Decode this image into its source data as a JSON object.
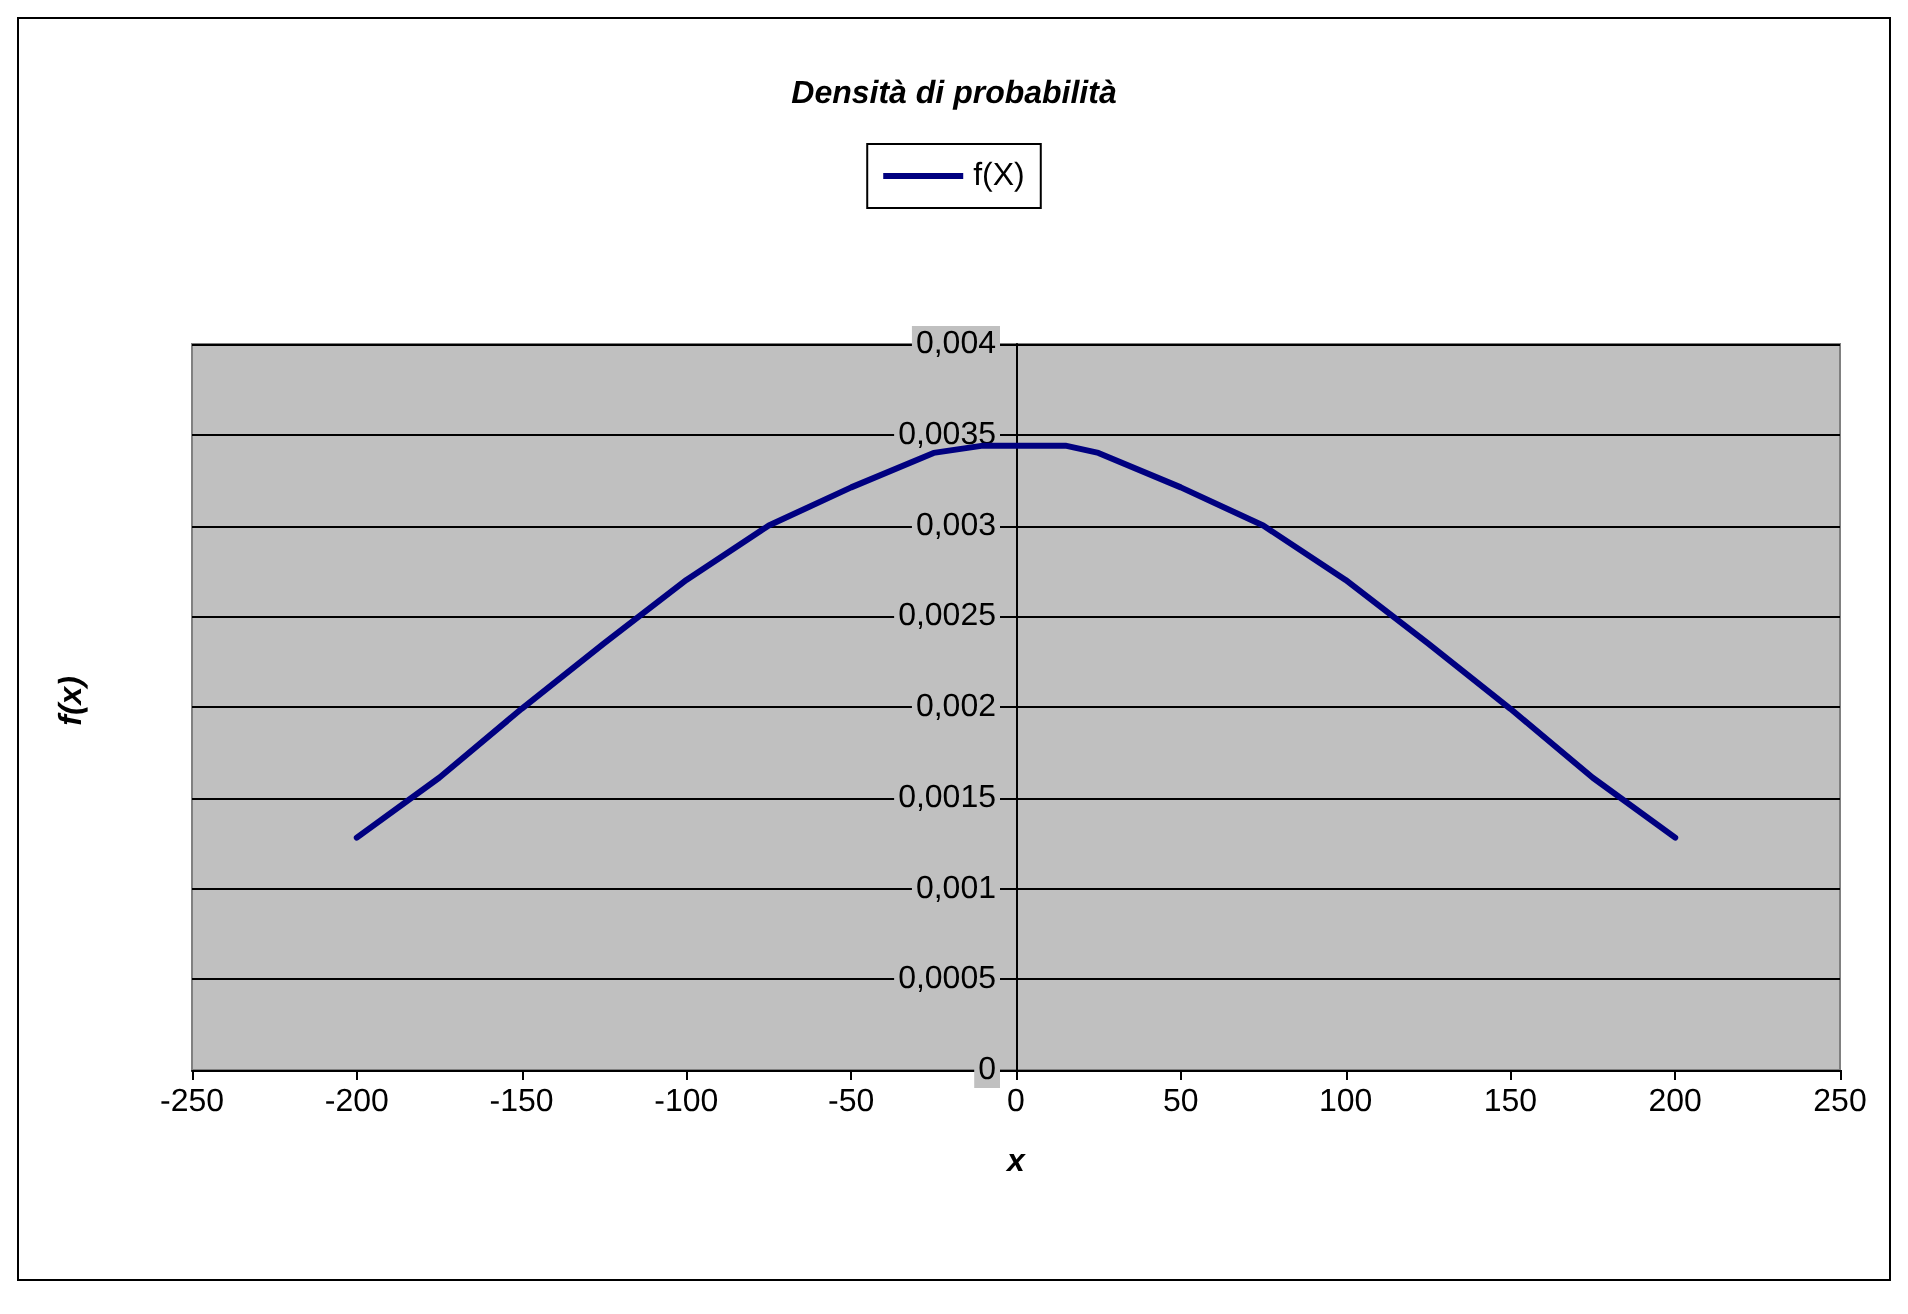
{
  "chart_data": {
    "type": "line",
    "title": "Densità di probabilità",
    "xlabel": "x",
    "ylabel": "f(x)",
    "x": [
      -200,
      -175,
      -150,
      -125,
      -100,
      -75,
      -50,
      -25,
      -10,
      0,
      15,
      25,
      50,
      75,
      100,
      125,
      150,
      175,
      200
    ],
    "series": [
      {
        "name": "f(X)",
        "color": "#000080",
        "values": [
          0.00128,
          0.00161,
          0.00199,
          0.00235,
          0.0027,
          0.003,
          0.00321,
          0.0034,
          0.00344,
          0.00344,
          0.00344,
          0.0034,
          0.00321,
          0.003,
          0.0027,
          0.00235,
          0.00199,
          0.00161,
          0.00128
        ]
      }
    ],
    "xlim": [
      -250,
      250
    ],
    "xticks": [
      -250,
      -200,
      -150,
      -100,
      -50,
      0,
      50,
      100,
      150,
      200,
      250
    ],
    "ylim": [
      0,
      0.004
    ],
    "yticks": [
      {
        "value": 0,
        "label": "0"
      },
      {
        "value": 0.0005,
        "label": "0,0005"
      },
      {
        "value": 0.001,
        "label": "0,001"
      },
      {
        "value": 0.0015,
        "label": "0,0015"
      },
      {
        "value": 0.002,
        "label": "0,002"
      },
      {
        "value": 0.0025,
        "label": "0,0025"
      },
      {
        "value": 0.003,
        "label": "0,003"
      },
      {
        "value": 0.0035,
        "label": "0,0035"
      },
      {
        "value": 0.004,
        "label": "0,004"
      }
    ],
    "grid": "y",
    "legend": "top",
    "marker": "none",
    "line_style": "solid"
  }
}
